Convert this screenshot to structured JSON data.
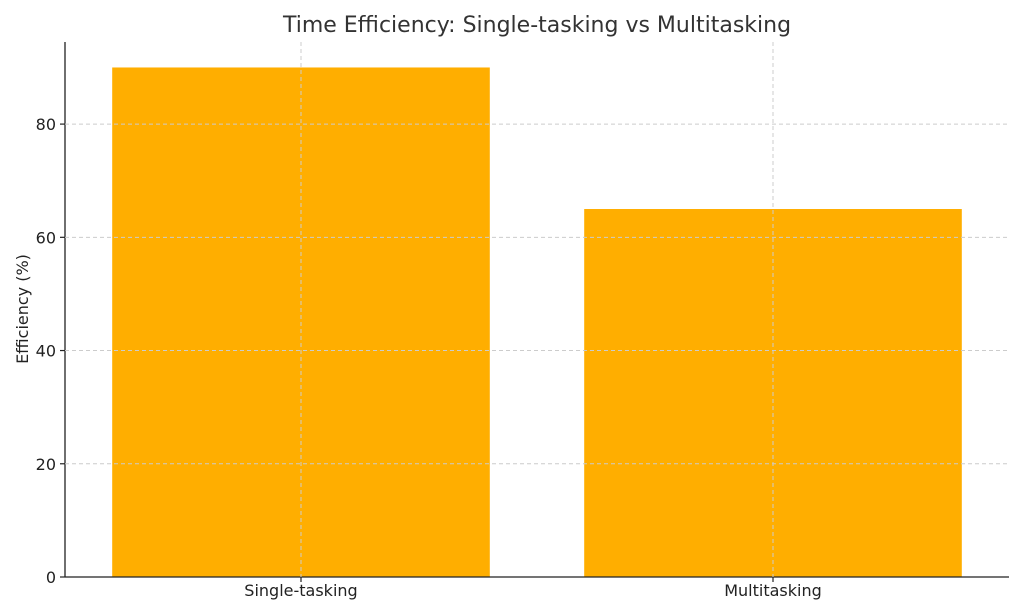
{
  "chart_data": {
    "type": "bar",
    "title": "Time Efficiency: Single-tasking vs Multitasking",
    "xlabel": "",
    "ylabel": "Efficiency (%)",
    "categories": [
      "Single-tasking",
      "Multitasking"
    ],
    "values": [
      90,
      65
    ],
    "ylim": [
      0,
      94.5
    ],
    "yticks": [
      0,
      20,
      40,
      60,
      80
    ],
    "grid": true,
    "bar_color": "#FFAE00"
  }
}
